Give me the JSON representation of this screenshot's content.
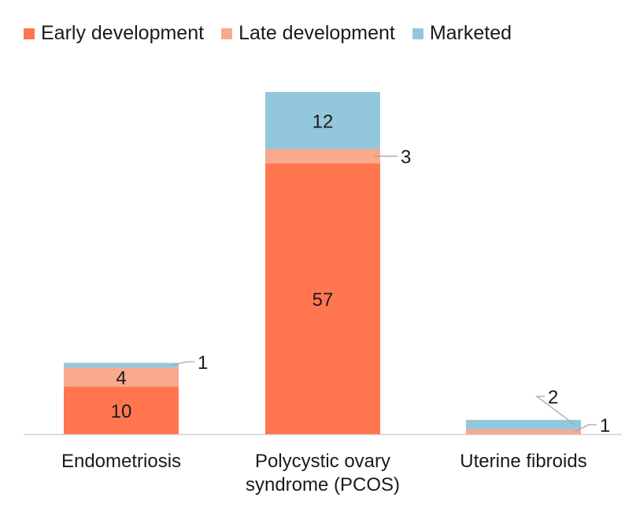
{
  "chart_data": {
    "type": "bar",
    "stacked": true,
    "categories": [
      "Endometriosis",
      "Polycystic ovary syndrome (PCOS)",
      "Uterine fibroids"
    ],
    "category_lines": [
      [
        "Endometriosis"
      ],
      [
        "Polycystic ovary",
        "syndrome (PCOS)"
      ],
      [
        "Uterine fibroids"
      ]
    ],
    "series": [
      {
        "name": "Early development",
        "color": "#ff7650",
        "values": [
          10,
          57,
          0
        ]
      },
      {
        "name": "Late development",
        "color": "#f9a98d",
        "values": [
          4,
          3,
          1
        ]
      },
      {
        "name": "Marketed",
        "color": "#93c8dc",
        "values": [
          1,
          12,
          2
        ]
      }
    ],
    "ylim": [
      0,
      72
    ],
    "grid": false,
    "legend_position": "top-left",
    "title": "",
    "xlabel": "",
    "ylabel": ""
  }
}
